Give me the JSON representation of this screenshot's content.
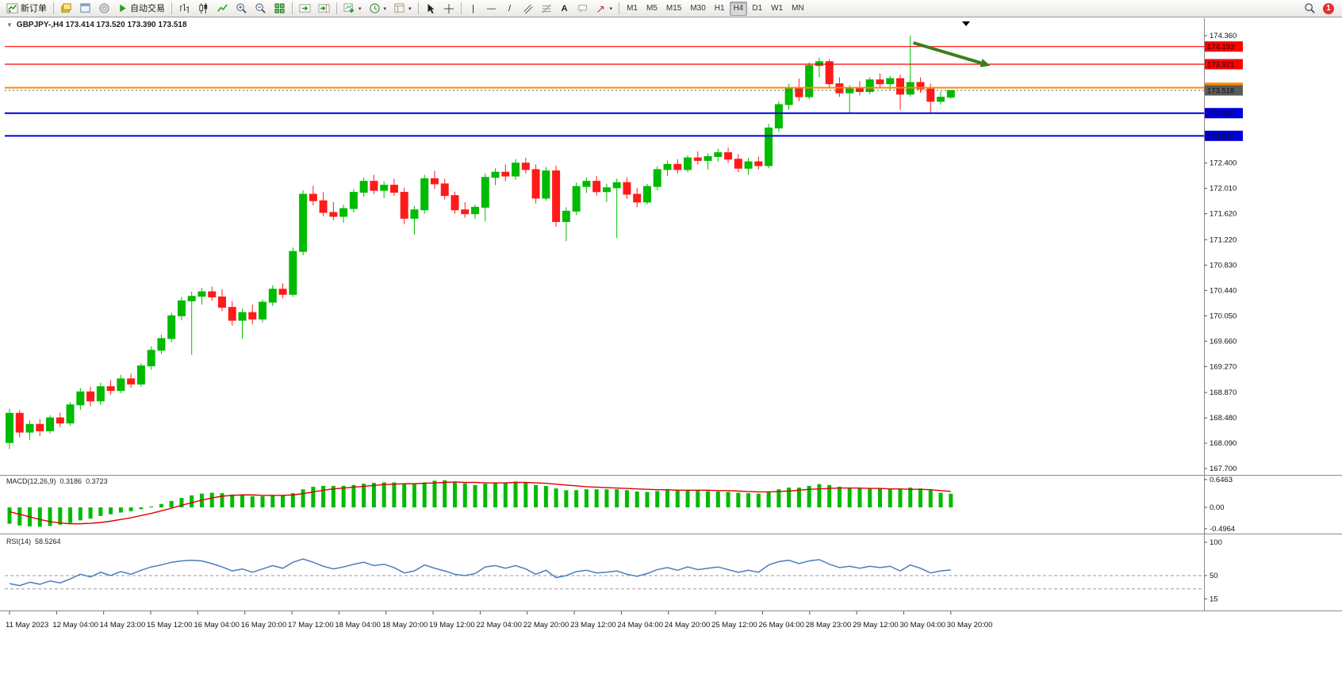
{
  "toolbar": {
    "new_order_label": "新订单",
    "auto_trading_label": "自动交易",
    "timeframes": [
      "M1",
      "M5",
      "M15",
      "M30",
      "H1",
      "H4",
      "D1",
      "W1",
      "MN"
    ],
    "active_timeframe": "H4",
    "notification_count": "1"
  },
  "chart": {
    "symbol_info": "GBPJPY-,H4 173.414 173.520 173.390 173.518"
  },
  "chart_data": {
    "type": "candlestick",
    "symbol": "GBPJPY-",
    "timeframe": "H4",
    "ohlc_display": {
      "open": "173.414",
      "high": "173.520",
      "low": "173.390",
      "close": "173.518"
    },
    "colors": {
      "bull": "#00BB00",
      "bear": "#FF1A1A",
      "macd_hist": "#00BB00",
      "macd_signal": "#E00000",
      "rsi": "#4A7EBB",
      "arrow": "#3E7D1F",
      "axis_text": "#111111"
    },
    "price_axis": {
      "ticks": [
        174.36,
        172.4,
        172.01,
        171.62,
        171.22,
        170.83,
        170.44,
        170.05,
        169.66,
        169.27,
        168.87,
        168.48,
        168.09,
        167.7
      ]
    },
    "levels": [
      {
        "price": 174.193,
        "color": "#FF0000",
        "width": 1.2,
        "badge": true
      },
      {
        "price": 173.921,
        "color": "#FF0000",
        "width": 1.2,
        "badge": true
      },
      {
        "price": 173.559,
        "color": "#FF8A00",
        "width": 2,
        "badge": true
      },
      {
        "price": 173.518,
        "color": "#5B5B5B",
        "width": 1,
        "dash": "2,3",
        "badge": true,
        "role": "bid"
      },
      {
        "price": 173.168,
        "color": "#0000DC",
        "width": 2,
        "badge": true
      },
      {
        "price": 172.819,
        "color": "#0000DC",
        "width": 2,
        "badge": true
      }
    ],
    "annotation_arrow": {
      "from": {
        "index": 89.3,
        "price": 174.25
      },
      "to": {
        "index": 96.0,
        "price": 173.94
      },
      "color": "#3E7D1F"
    },
    "candles": [
      [
        168.1,
        168.62,
        168.0,
        168.55
      ],
      [
        168.55,
        168.6,
        168.18,
        168.26
      ],
      [
        168.26,
        168.44,
        168.14,
        168.38
      ],
      [
        168.38,
        168.46,
        168.2,
        168.28
      ],
      [
        168.28,
        168.52,
        168.24,
        168.48
      ],
      [
        168.48,
        168.56,
        168.34,
        168.4
      ],
      [
        168.4,
        168.72,
        168.36,
        168.68
      ],
      [
        168.68,
        168.94,
        168.6,
        168.88
      ],
      [
        168.88,
        168.96,
        168.66,
        168.74
      ],
      [
        168.74,
        169.02,
        168.68,
        168.96
      ],
      [
        168.96,
        169.06,
        168.84,
        168.9
      ],
      [
        168.9,
        169.14,
        168.86,
        169.08
      ],
      [
        169.08,
        169.16,
        168.94,
        169.0
      ],
      [
        169.0,
        169.32,
        168.96,
        169.28
      ],
      [
        169.28,
        169.58,
        169.22,
        169.52
      ],
      [
        169.52,
        169.76,
        169.46,
        169.7
      ],
      [
        169.7,
        170.1,
        169.64,
        170.05
      ],
      [
        170.05,
        170.34,
        169.98,
        170.28
      ],
      [
        170.28,
        170.42,
        169.45,
        170.35
      ],
      [
        170.35,
        170.48,
        170.22,
        170.42
      ],
      [
        170.42,
        170.5,
        170.28,
        170.34
      ],
      [
        170.34,
        170.46,
        170.12,
        170.18
      ],
      [
        170.18,
        170.28,
        169.9,
        169.98
      ],
      [
        169.98,
        170.16,
        169.7,
        170.1
      ],
      [
        170.1,
        170.22,
        169.92,
        170.0
      ],
      [
        170.0,
        170.3,
        169.95,
        170.26
      ],
      [
        170.26,
        170.52,
        170.2,
        170.46
      ],
      [
        170.46,
        170.55,
        170.32,
        170.38
      ],
      [
        170.38,
        171.1,
        170.34,
        171.04
      ],
      [
        171.04,
        171.98,
        170.98,
        171.92
      ],
      [
        171.92,
        172.05,
        171.75,
        171.82
      ],
      [
        171.82,
        171.95,
        171.58,
        171.64
      ],
      [
        171.64,
        171.8,
        171.52,
        171.58
      ],
      [
        171.58,
        171.76,
        171.48,
        171.7
      ],
      [
        171.7,
        172.0,
        171.64,
        171.95
      ],
      [
        171.95,
        172.18,
        171.88,
        172.12
      ],
      [
        172.12,
        172.22,
        171.92,
        171.98
      ],
      [
        171.98,
        172.12,
        171.86,
        172.06
      ],
      [
        172.06,
        172.16,
        171.9,
        171.95
      ],
      [
        171.95,
        172.02,
        171.46,
        171.55
      ],
      [
        171.55,
        171.74,
        171.3,
        171.68
      ],
      [
        171.68,
        172.22,
        171.62,
        172.16
      ],
      [
        172.16,
        172.28,
        172.0,
        172.08
      ],
      [
        172.08,
        172.16,
        171.84,
        171.9
      ],
      [
        171.9,
        171.96,
        171.62,
        171.68
      ],
      [
        171.68,
        171.8,
        171.56,
        171.62
      ],
      [
        171.62,
        171.76,
        171.54,
        171.72
      ],
      [
        171.72,
        172.24,
        171.5,
        172.18
      ],
      [
        172.18,
        172.32,
        172.06,
        172.26
      ],
      [
        172.26,
        172.38,
        172.12,
        172.2
      ],
      [
        172.2,
        172.46,
        172.14,
        172.4
      ],
      [
        172.4,
        172.48,
        172.24,
        172.3
      ],
      [
        172.3,
        172.38,
        171.78,
        171.86
      ],
      [
        171.86,
        172.34,
        171.82,
        172.28
      ],
      [
        172.28,
        172.36,
        171.42,
        171.5
      ],
      [
        171.5,
        171.72,
        171.2,
        171.66
      ],
      [
        171.66,
        172.1,
        171.6,
        172.04
      ],
      [
        172.04,
        172.18,
        171.94,
        172.12
      ],
      [
        172.12,
        172.2,
        171.9,
        171.96
      ],
      [
        171.96,
        172.08,
        171.8,
        172.02
      ],
      [
        172.02,
        172.16,
        171.25,
        172.1
      ],
      [
        172.1,
        172.18,
        171.85,
        171.92
      ],
      [
        171.92,
        172.02,
        171.72,
        171.8
      ],
      [
        171.8,
        172.08,
        171.76,
        172.04
      ],
      [
        172.04,
        172.35,
        171.98,
        172.3
      ],
      [
        172.3,
        172.44,
        172.2,
        172.38
      ],
      [
        172.38,
        172.46,
        172.24,
        172.3
      ],
      [
        172.3,
        172.52,
        172.26,
        172.48
      ],
      [
        172.48,
        172.58,
        172.38,
        172.44
      ],
      [
        172.44,
        172.55,
        172.3,
        172.5
      ],
      [
        172.5,
        172.62,
        172.42,
        172.56
      ],
      [
        172.56,
        172.64,
        172.4,
        172.46
      ],
      [
        172.46,
        172.54,
        172.26,
        172.32
      ],
      [
        172.32,
        172.48,
        172.22,
        172.42
      ],
      [
        172.42,
        172.5,
        172.3,
        172.36
      ],
      [
        172.36,
        173.0,
        172.32,
        172.94
      ],
      [
        172.94,
        173.35,
        172.88,
        173.3
      ],
      [
        173.3,
        173.62,
        173.22,
        173.56
      ],
      [
        173.56,
        173.7,
        173.35,
        173.42
      ],
      [
        173.42,
        173.95,
        173.38,
        173.9
      ],
      [
        173.9,
        174.02,
        173.72,
        173.96
      ],
      [
        173.96,
        174.0,
        173.55,
        173.62
      ],
      [
        173.62,
        173.72,
        173.42,
        173.48
      ],
      [
        173.48,
        173.6,
        173.17,
        173.55
      ],
      [
        173.55,
        173.66,
        173.44,
        173.5
      ],
      [
        173.5,
        173.72,
        173.46,
        173.68
      ],
      [
        173.68,
        173.78,
        173.56,
        173.62
      ],
      [
        173.62,
        173.74,
        173.52,
        173.7
      ],
      [
        173.7,
        173.76,
        173.22,
        173.46
      ],
      [
        173.46,
        174.36,
        173.42,
        173.64
      ],
      [
        173.64,
        173.72,
        173.48,
        173.54
      ],
      [
        173.54,
        173.62,
        173.17,
        173.35
      ],
      [
        173.35,
        173.5,
        173.3,
        173.414
      ],
      [
        173.414,
        173.52,
        173.39,
        173.518
      ]
    ],
    "time_labels": [
      "11 May 2023",
      "12 May 04:00",
      "14 May 23:00",
      "15 May 12:00",
      "16 May 04:00",
      "16 May 20:00",
      "17 May 12:00",
      "18 May 04:00",
      "18 May 20:00",
      "19 May 12:00",
      "22 May 04:00",
      "22 May 20:00",
      "23 May 12:00",
      "24 May 04:00",
      "24 May 20:00",
      "25 May 12:00",
      "26 May 04:00",
      "28 May 23:00",
      "29 May 12:00",
      "30 May 04:00",
      "30 May 20:00"
    ],
    "macd": {
      "label": "MACD(12,26,9)",
      "value_main": "0.3186",
      "value_signal": "0.3723",
      "axis": [
        {
          "v": 0.6463,
          "label": "0.6463"
        },
        {
          "v": 0,
          "label": "0.00"
        },
        {
          "v": -0.4964,
          "label": "-0.4964"
        }
      ],
      "histogram": [
        -0.38,
        -0.42,
        -0.44,
        -0.45,
        -0.43,
        -0.4,
        -0.36,
        -0.3,
        -0.26,
        -0.2,
        -0.16,
        -0.12,
        -0.09,
        -0.04,
        0.02,
        0.08,
        0.15,
        0.22,
        0.28,
        0.32,
        0.34,
        0.33,
        0.3,
        0.28,
        0.26,
        0.26,
        0.27,
        0.28,
        0.33,
        0.42,
        0.48,
        0.5,
        0.5,
        0.5,
        0.52,
        0.55,
        0.57,
        0.58,
        0.58,
        0.55,
        0.54,
        0.58,
        0.62,
        0.63,
        0.6,
        0.56,
        0.52,
        0.55,
        0.58,
        0.58,
        0.6,
        0.58,
        0.52,
        0.5,
        0.44,
        0.4,
        0.4,
        0.42,
        0.42,
        0.42,
        0.42,
        0.4,
        0.37,
        0.36,
        0.38,
        0.4,
        0.4,
        0.4,
        0.4,
        0.38,
        0.37,
        0.36,
        0.34,
        0.33,
        0.32,
        0.36,
        0.42,
        0.46,
        0.46,
        0.5,
        0.54,
        0.52,
        0.48,
        0.46,
        0.44,
        0.44,
        0.44,
        0.44,
        0.42,
        0.46,
        0.44,
        0.4,
        0.34,
        0.3186
      ],
      "signal": [
        -0.1,
        -0.16,
        -0.22,
        -0.28,
        -0.33,
        -0.36,
        -0.38,
        -0.38,
        -0.37,
        -0.35,
        -0.32,
        -0.28,
        -0.24,
        -0.19,
        -0.14,
        -0.08,
        -0.02,
        0.05,
        0.11,
        0.17,
        0.22,
        0.26,
        0.28,
        0.29,
        0.29,
        0.28,
        0.28,
        0.28,
        0.29,
        0.32,
        0.36,
        0.4,
        0.43,
        0.45,
        0.47,
        0.49,
        0.51,
        0.53,
        0.54,
        0.55,
        0.55,
        0.56,
        0.57,
        0.58,
        0.59,
        0.58,
        0.58,
        0.57,
        0.57,
        0.57,
        0.58,
        0.58,
        0.57,
        0.56,
        0.54,
        0.52,
        0.5,
        0.48,
        0.47,
        0.46,
        0.45,
        0.44,
        0.43,
        0.42,
        0.41,
        0.41,
        0.4,
        0.4,
        0.4,
        0.4,
        0.39,
        0.39,
        0.38,
        0.37,
        0.36,
        0.36,
        0.37,
        0.38,
        0.4,
        0.42,
        0.43,
        0.44,
        0.45,
        0.45,
        0.45,
        0.44,
        0.44,
        0.43,
        0.43,
        0.42,
        0.42,
        0.41,
        0.39,
        0.3723
      ]
    },
    "rsi": {
      "label": "RSI(14)",
      "value": "58.5264",
      "axis": [
        {
          "v": 100,
          "label": "100"
        },
        {
          "v": 50,
          "label": "50"
        },
        {
          "v": 15,
          "label": "15"
        }
      ],
      "level_lines": [
        50,
        30
      ],
      "values": [
        38,
        35,
        40,
        37,
        42,
        39,
        45,
        52,
        48,
        55,
        50,
        56,
        52,
        58,
        63,
        66,
        70,
        72,
        73,
        72,
        68,
        63,
        57,
        60,
        55,
        60,
        65,
        61,
        70,
        75,
        70,
        64,
        60,
        63,
        67,
        70,
        65,
        67,
        62,
        54,
        57,
        66,
        61,
        57,
        52,
        50,
        53,
        63,
        65,
        61,
        65,
        60,
        52,
        58,
        47,
        50,
        56,
        58,
        54,
        55,
        57,
        52,
        49,
        53,
        59,
        62,
        58,
        63,
        59,
        61,
        63,
        59,
        55,
        58,
        55,
        66,
        71,
        73,
        68,
        72,
        74,
        67,
        62,
        64,
        61,
        64,
        62,
        64,
        57,
        66,
        61,
        54,
        57,
        58.53
      ]
    }
  }
}
